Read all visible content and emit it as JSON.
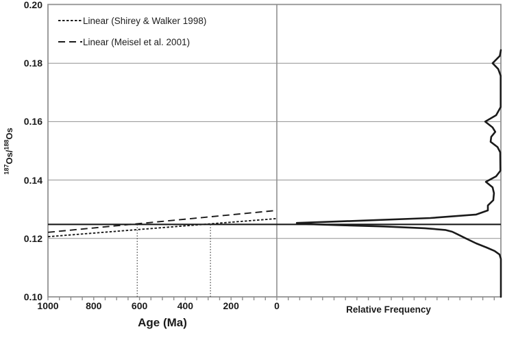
{
  "colors": {
    "line_black": "#1a1a1a",
    "grid_gray": "#909090",
    "axis_gray": "#8c8c8c",
    "dotted_marker": "#4a4a4a",
    "background": "#ffffff"
  },
  "chart_data": {
    "type": "line",
    "x_axis": {
      "label": "Age (Ma)",
      "tick_labels": [
        "1000",
        "800",
        "600",
        "400",
        "200",
        "0"
      ],
      "tick_ages": [
        1000,
        800,
        600,
        400,
        200,
        0
      ],
      "range": [
        1000,
        0
      ],
      "minor_tick_interval_ma": 50,
      "grid": false
    },
    "y_axis": {
      "label_sup1": "187",
      "label_mid": "Os/",
      "label_sup2": "188",
      "label_end": "Os",
      "tick_labels": [
        "0.20",
        "0.18",
        "0.16",
        "0.14",
        "0.12",
        "0.10"
      ],
      "tick_values": [
        0.2,
        0.18,
        0.16,
        0.14,
        0.12,
        0.1
      ],
      "range": [
        0.1,
        0.2
      ],
      "gridline_values": [
        0.18,
        0.16,
        0.14,
        0.12
      ],
      "grid": true
    },
    "right_panel": {
      "label": "Relative Frequency"
    },
    "legend": {
      "position": "top-left-inside",
      "entries": [
        {
          "label": "Linear (Shirey & Walker 1998)",
          "dash": "fine"
        },
        {
          "label": "Linear (Meisel et al. 2001)",
          "dash": "long"
        }
      ]
    },
    "series": [
      {
        "name": "Linear (Shirey & Walker 1998)",
        "dash": "fine",
        "points_age_ratio": [
          [
            1000,
            0.1206
          ],
          [
            0,
            0.1268
          ]
        ]
      },
      {
        "name": "Linear (Meisel et al. 2001)",
        "dash": "long",
        "points_age_ratio": [
          [
            1000,
            0.1221
          ],
          [
            0,
            0.1296
          ]
        ]
      }
    ],
    "reference_lines": {
      "horizontal_os_ratio": 0.1248,
      "vertical_dotted_ages_ma": [
        610,
        290
      ]
    },
    "frequency_curve": {
      "orientation": "vertical, frequency increases leftward from right edge",
      "freq_units": "fraction of right panel width",
      "points_ratio_freq": [
        [
          0.1845,
          0.0
        ],
        [
          0.1825,
          0.005
        ],
        [
          0.18,
          0.037
        ],
        [
          0.178,
          0.012
        ],
        [
          0.1757,
          0.001
        ],
        [
          0.165,
          0.001
        ],
        [
          0.1622,
          0.021
        ],
        [
          0.16,
          0.07
        ],
        [
          0.158,
          0.037
        ],
        [
          0.1565,
          0.025
        ],
        [
          0.1548,
          0.043
        ],
        [
          0.1531,
          0.046
        ],
        [
          0.1513,
          0.015
        ],
        [
          0.1495,
          0.003
        ],
        [
          0.1432,
          0.002
        ],
        [
          0.1413,
          0.021
        ],
        [
          0.1394,
          0.067
        ],
        [
          0.1375,
          0.037
        ],
        [
          0.1355,
          0.031
        ],
        [
          0.1331,
          0.034
        ],
        [
          0.1313,
          0.058
        ],
        [
          0.1296,
          0.058
        ],
        [
          0.1282,
          0.11
        ],
        [
          0.127,
          0.315
        ],
        [
          0.1261,
          0.621
        ],
        [
          0.1253,
          0.911
        ],
        [
          0.1249,
          0.859
        ],
        [
          0.1245,
          0.706
        ],
        [
          0.1241,
          0.523
        ],
        [
          0.1235,
          0.339
        ],
        [
          0.1229,
          0.248
        ],
        [
          0.1223,
          0.217
        ],
        [
          0.1214,
          0.193
        ],
        [
          0.12,
          0.156
        ],
        [
          0.1183,
          0.11
        ],
        [
          0.1169,
          0.064
        ],
        [
          0.1157,
          0.028
        ],
        [
          0.1145,
          0.006
        ],
        [
          0.113,
          0.0
        ],
        [
          0.1,
          0.0
        ]
      ]
    }
  }
}
